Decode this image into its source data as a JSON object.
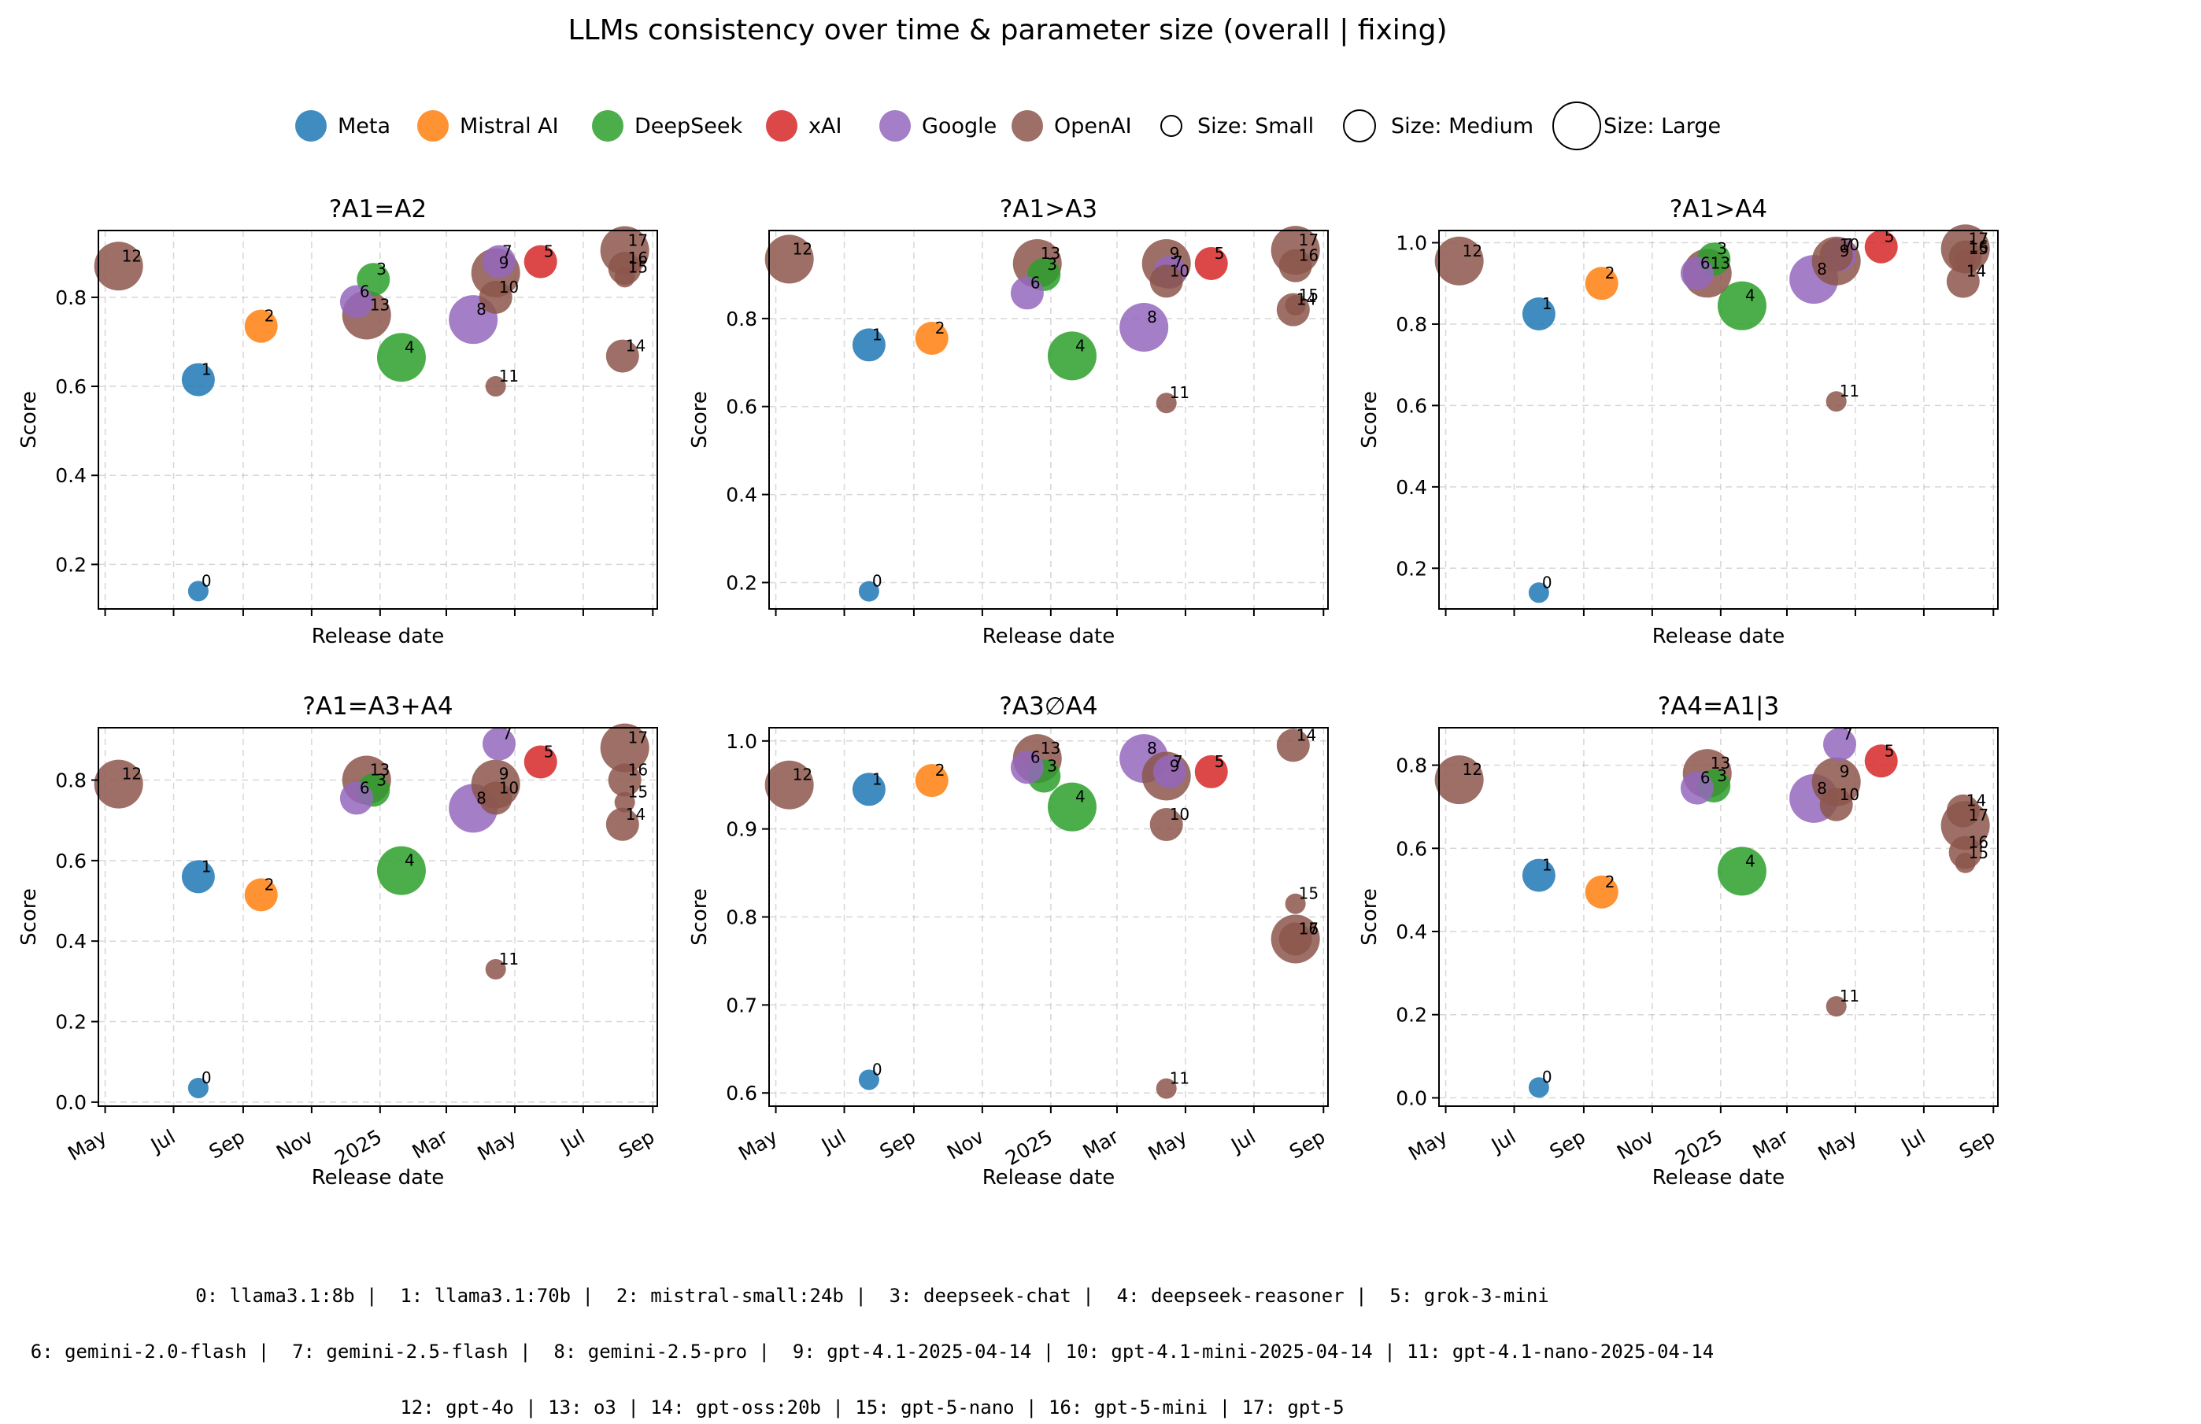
{
  "title": "LLMs consistency over time & parameter size  (overall | fixing)",
  "legend": {
    "vendors": [
      {
        "name": "Meta",
        "color": "#1f77b4"
      },
      {
        "name": "Mistral AI",
        "color": "#ff7f0e"
      },
      {
        "name": "DeepSeek",
        "color": "#2ca02c"
      },
      {
        "name": "xAI",
        "color": "#d62728"
      },
      {
        "name": "Google",
        "color": "#9467bd"
      },
      {
        "name": "OpenAI",
        "color": "#8c564b"
      }
    ],
    "sizes": [
      {
        "label": "Size: Small",
        "size": "small"
      },
      {
        "label": "Size: Medium",
        "size": "medium"
      },
      {
        "label": "Size: Large",
        "size": "large"
      }
    ]
  },
  "models": [
    {
      "id": 0,
      "name": "llama3.1:8b",
      "vendor": "Meta",
      "size": "small",
      "date": "2024-07-23"
    },
    {
      "id": 1,
      "name": "llama3.1:70b",
      "vendor": "Meta",
      "size": "medium",
      "date": "2024-07-23"
    },
    {
      "id": 2,
      "name": "mistral-small:24b",
      "vendor": "Mistral AI",
      "size": "medium",
      "date": "2024-09-17"
    },
    {
      "id": 3,
      "name": "deepseek-chat",
      "vendor": "DeepSeek",
      "size": "medium",
      "date": "2024-12-26"
    },
    {
      "id": 4,
      "name": "deepseek-reasoner",
      "vendor": "DeepSeek",
      "size": "large",
      "date": "2025-01-20"
    },
    {
      "id": 5,
      "name": "grok-3-mini",
      "vendor": "xAI",
      "size": "medium",
      "date": "2025-05-24"
    },
    {
      "id": 6,
      "name": "gemini-2.0-flash",
      "vendor": "Google",
      "size": "medium",
      "date": "2024-12-11"
    },
    {
      "id": 7,
      "name": "gemini-2.5-flash",
      "vendor": "Google",
      "size": "medium",
      "date": "2025-04-17"
    },
    {
      "id": 8,
      "name": "gemini-2.5-pro",
      "vendor": "Google",
      "size": "large",
      "date": "2025-03-25"
    },
    {
      "id": 9,
      "name": "gpt-4.1-2025-04-14",
      "vendor": "OpenAI",
      "size": "large",
      "date": "2025-04-14"
    },
    {
      "id": 10,
      "name": "gpt-4.1-mini-2025-04-14",
      "vendor": "OpenAI",
      "size": "medium",
      "date": "2025-04-14"
    },
    {
      "id": 11,
      "name": "gpt-4.1-nano-2025-04-14",
      "vendor": "OpenAI",
      "size": "small",
      "date": "2025-04-14"
    },
    {
      "id": 12,
      "name": "gpt-4o",
      "vendor": "OpenAI",
      "size": "large",
      "date": "2024-05-13"
    },
    {
      "id": 13,
      "name": "o3",
      "vendor": "OpenAI",
      "size": "large",
      "date": "2024-12-20"
    },
    {
      "id": 14,
      "name": "gpt-oss:20b",
      "vendor": "OpenAI",
      "size": "medium",
      "date": "2025-08-05"
    },
    {
      "id": 15,
      "name": "gpt-5-nano",
      "vendor": "OpenAI",
      "size": "small",
      "date": "2025-08-07"
    },
    {
      "id": 16,
      "name": "gpt-5-mini",
      "vendor": "OpenAI",
      "size": "medium",
      "date": "2025-08-07"
    },
    {
      "id": 17,
      "name": "gpt-5",
      "vendor": "OpenAI",
      "size": "large",
      "date": "2025-08-07"
    }
  ],
  "footer_lines": [
    "0: llama3.1:8b |  1: llama3.1:70b |  2: mistral-small:24b |  3: deepseek-chat |  4: deepseek-reasoner |  5: grok-3-mini",
    "6: gemini-2.0-flash |  7: gemini-2.5-flash |  8: gemini-2.5-pro |  9: gpt-4.1-2025-04-14 | 10: gpt-4.1-mini-2025-04-14 | 11: gpt-4.1-nano-2025-04-14",
    "12: gpt-4o | 13: o3 | 14: gpt-oss:20b | 15: gpt-5-nano | 16: gpt-5-mini | 17: gpt-5"
  ],
  "x_axis": {
    "label": "Release date",
    "range": [
      "2024-04-25",
      "2025-09-05"
    ],
    "ticks": [
      {
        "date": "2024-05-01",
        "label": "May"
      },
      {
        "date": "2024-07-01",
        "label": "Jul"
      },
      {
        "date": "2024-09-01",
        "label": "Sep"
      },
      {
        "date": "2024-11-01",
        "label": "Nov"
      },
      {
        "date": "2025-01-01",
        "label": "2025"
      },
      {
        "date": "2025-03-01",
        "label": "Mar"
      },
      {
        "date": "2025-05-01",
        "label": "May"
      },
      {
        "date": "2025-07-01",
        "label": "Jul"
      },
      {
        "date": "2025-09-01",
        "label": "Sep"
      }
    ]
  },
  "chart_data": [
    {
      "type": "scatter",
      "title": "?A1=A2",
      "xlabel": "Release date",
      "ylabel": "Score",
      "ylim": [
        0.1,
        0.95
      ],
      "yticks": [
        0.2,
        0.4,
        0.6,
        0.8
      ],
      "grid": true,
      "scores": [
        0.14,
        0.615,
        0.735,
        0.84,
        0.665,
        0.88,
        0.79,
        0.88,
        0.75,
        0.855,
        0.8,
        0.6,
        0.87,
        0.76,
        0.668,
        0.845,
        0.865,
        0.905
      ]
    },
    {
      "type": "scatter",
      "title": "?A1>A3",
      "xlabel": "Release date",
      "ylabel": "Score",
      "ylim": [
        0.14,
        1.0
      ],
      "yticks": [
        0.2,
        0.4,
        0.6,
        0.8
      ],
      "grid": true,
      "scores": [
        0.18,
        0.74,
        0.755,
        0.9,
        0.715,
        0.925,
        0.858,
        0.905,
        0.78,
        0.925,
        0.885,
        0.608,
        0.935,
        0.925,
        0.82,
        0.83,
        0.92,
        0.955
      ]
    },
    {
      "type": "scatter",
      "title": "?A1>A4",
      "xlabel": "Release date",
      "ylabel": "Score",
      "ylim": [
        0.1,
        1.03
      ],
      "yticks": [
        0.2,
        0.4,
        0.6,
        0.8,
        1.0
      ],
      "grid": true,
      "scores": [
        0.14,
        0.825,
        0.9,
        0.96,
        0.845,
        0.99,
        0.925,
        0.97,
        0.91,
        0.955,
        0.97,
        0.61,
        0.955,
        0.925,
        0.905,
        0.96,
        0.965,
        0.985
      ]
    },
    {
      "type": "scatter",
      "title": "?A1=A3+A4",
      "xlabel": "Release date",
      "ylabel": "Score",
      "ylim": [
        -0.01,
        0.93
      ],
      "yticks": [
        0.0,
        0.2,
        0.4,
        0.6,
        0.8
      ],
      "grid": true,
      "scores": [
        0.035,
        0.56,
        0.515,
        0.775,
        0.575,
        0.845,
        0.755,
        0.89,
        0.73,
        0.79,
        0.755,
        0.33,
        0.79,
        0.8,
        0.69,
        0.745,
        0.8,
        0.88
      ]
    },
    {
      "type": "scatter",
      "title": "?A3∅A4",
      "xlabel": "Release date",
      "ylabel": "Score",
      "ylim": [
        0.585,
        1.015
      ],
      "yticks": [
        0.6,
        0.7,
        0.8,
        0.9,
        1.0
      ],
      "grid": true,
      "scores": [
        0.615,
        0.945,
        0.955,
        0.96,
        0.925,
        0.965,
        0.97,
        0.965,
        0.98,
        0.96,
        0.905,
        0.605,
        0.95,
        0.98,
        0.995,
        0.815,
        0.775,
        0.775
      ]
    },
    {
      "type": "scatter",
      "title": "?A4=A1|3",
      "xlabel": "Release date",
      "ylabel": "Score",
      "ylim": [
        -0.02,
        0.89
      ],
      "yticks": [
        0.0,
        0.2,
        0.4,
        0.6,
        0.8
      ],
      "grid": true,
      "scores": [
        0.025,
        0.535,
        0.495,
        0.75,
        0.545,
        0.81,
        0.745,
        0.85,
        0.72,
        0.76,
        0.705,
        0.22,
        0.765,
        0.78,
        0.69,
        0.565,
        0.59,
        0.655
      ]
    }
  ]
}
